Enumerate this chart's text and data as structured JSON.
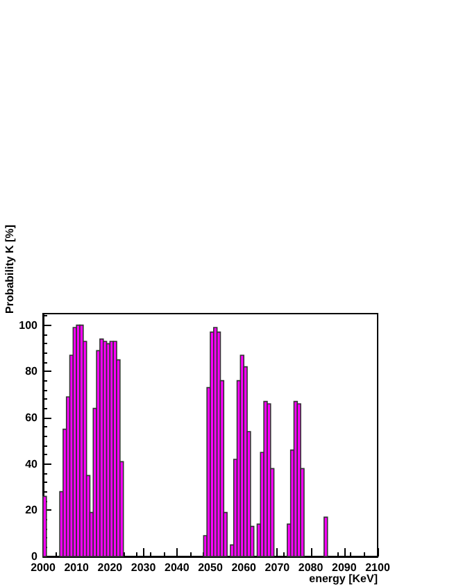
{
  "chart_data": {
    "type": "histogram",
    "xlabel": "energy [KeV]",
    "ylabel": "Probability K [%]",
    "bins": [
      2000,
      2001,
      2002,
      2003,
      2004,
      2005,
      2006,
      2007,
      2008,
      2009,
      2010,
      2011,
      2012,
      2013,
      2014,
      2015,
      2016,
      2017,
      2018,
      2019,
      2020,
      2021,
      2022,
      2023,
      2024,
      2025,
      2026,
      2027,
      2028,
      2029,
      2030,
      2031,
      2032,
      2033,
      2034,
      2035,
      2036,
      2037,
      2038,
      2039,
      2040,
      2041,
      2042,
      2043,
      2044,
      2045,
      2046,
      2047,
      2048,
      2049,
      2050,
      2051,
      2052,
      2053,
      2054,
      2055,
      2056,
      2057,
      2058,
      2059,
      2060,
      2061,
      2062,
      2063,
      2064,
      2065,
      2066,
      2067,
      2068,
      2069,
      2070,
      2071,
      2072,
      2073,
      2074,
      2075,
      2076,
      2077,
      2078,
      2079,
      2080,
      2081,
      2082,
      2083,
      2084,
      2085,
      2086,
      2087,
      2088,
      2089,
      2090,
      2091,
      2092,
      2093,
      2094,
      2095,
      2096,
      2097,
      2098,
      2099,
      2100
    ],
    "values": [
      26,
      0,
      0,
      0,
      0,
      28,
      55,
      69,
      87,
      99,
      100,
      100,
      93,
      35,
      19,
      64,
      89,
      94,
      93,
      92,
      93,
      93,
      85,
      41,
      0,
      0,
      0,
      0,
      0,
      0,
      0,
      0,
      0,
      0,
      0,
      0,
      0,
      0,
      0,
      0,
      0,
      0,
      0,
      0,
      0,
      0,
      0,
      0,
      9,
      73,
      97,
      99,
      97,
      76,
      19,
      0,
      5,
      42,
      76,
      87,
      82,
      54,
      13,
      0,
      14,
      45,
      67,
      66,
      38,
      0,
      0,
      0,
      0,
      14,
      46,
      67,
      66,
      38,
      0,
      0,
      0,
      0,
      0,
      0,
      17,
      0,
      0,
      0,
      0,
      0,
      0,
      0,
      0,
      0,
      0,
      0,
      0,
      0,
      0,
      0
    ],
    "color": "#ff00ff",
    "xlim": [
      2000,
      2100
    ],
    "xticks": [
      2000,
      2010,
      2020,
      2030,
      2040,
      2050,
      2060,
      2070,
      2080,
      2090,
      2100
    ],
    "ylim": [
      0,
      105
    ],
    "yticks": [
      0,
      20,
      40,
      60,
      80,
      100
    ],
    "grid": false
  }
}
